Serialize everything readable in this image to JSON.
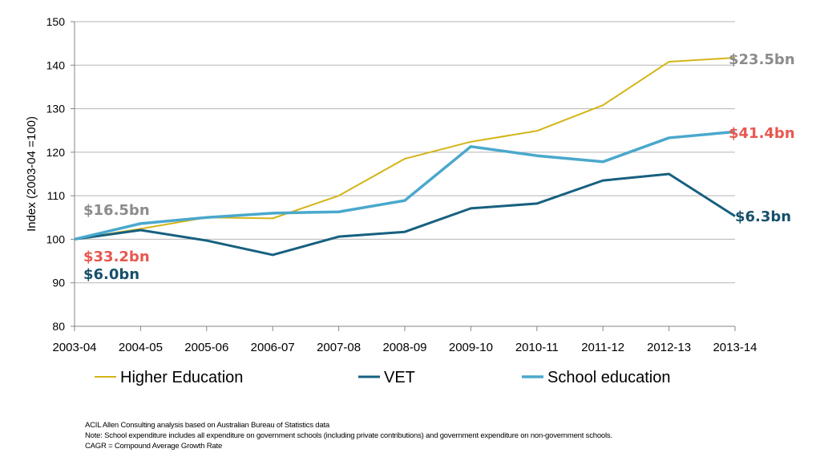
{
  "chart_data": {
    "type": "line",
    "ylabel": "Index (2003-04 =100)",
    "xlabel": "",
    "ylim": [
      80,
      150
    ],
    "yticks": [
      80,
      90,
      100,
      110,
      120,
      130,
      140,
      150
    ],
    "grid": true,
    "legend_position": "bottom",
    "categories": [
      "2003-04",
      "2004-05",
      "2005-06",
      "2006-07",
      "2007-08",
      "2008-09",
      "2009-10",
      "2010-11",
      "2011-12",
      "2012-13",
      "2013-14"
    ],
    "series": [
      {
        "name": "Higher Education",
        "color": "#d4b418",
        "values": [
          100,
          102.4,
          105,
          104.8,
          110,
          118.5,
          122.4,
          124.9,
          130.8,
          140.8,
          141.7
        ]
      },
      {
        "name": "VET",
        "color": "#17607f",
        "values": [
          100,
          102.1,
          99.7,
          96.4,
          100.6,
          101.7,
          107.1,
          108.2,
          113.5,
          115,
          105.3
        ]
      },
      {
        "name": "School education",
        "color": "#4aa8cc",
        "values": [
          100,
          103.6,
          105,
          106,
          106.3,
          108.9,
          121.3,
          119.2,
          117.8,
          123.3,
          124.7
        ]
      }
    ],
    "annotations": {
      "start": [
        {
          "text": "$16.5bn",
          "color": "#8c8c8c"
        },
        {
          "text": "$33.2bn",
          "color": "#e8574f"
        },
        {
          "text": "$6.0bn",
          "color": "#17506b"
        }
      ],
      "end": [
        {
          "text": "$23.5bn",
          "color": "#8c8c8c"
        },
        {
          "text": "$41.4bn",
          "color": "#e8574f"
        },
        {
          "text": "$6.3bn",
          "color": "#17506b"
        }
      ]
    }
  },
  "notes": [
    "ACIL Allen Consulting analysis based on Australian  Bureau of Statistics data",
    "Note: School expenditure includes all expenditure on government schools (including private contributions) and government expenditure on non-government schools.",
    "CAGR = Compound Average Growth Rate"
  ]
}
